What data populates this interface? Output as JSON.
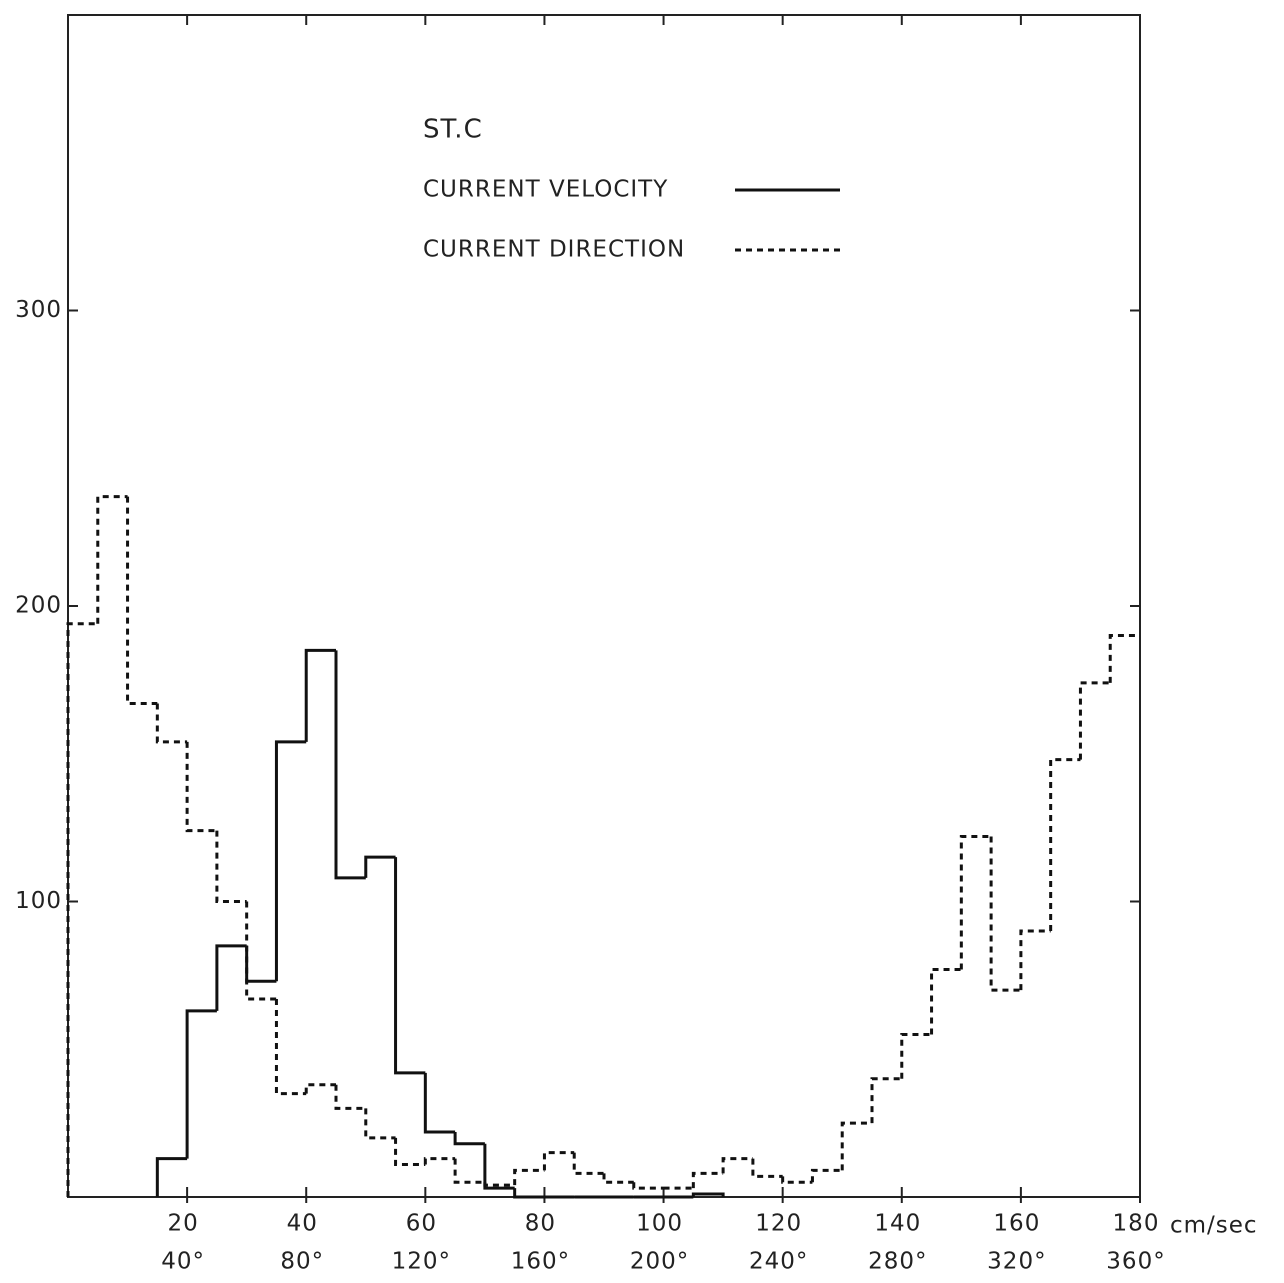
{
  "chart_data": {
    "type": "histogram",
    "title": "ST.C",
    "xlabel": "cm/sec",
    "xlim": [
      0,
      180
    ],
    "xticks": [
      20,
      40,
      60,
      80,
      100,
      120,
      140,
      160,
      180
    ],
    "x2lim": [
      0,
      360
    ],
    "x2ticks": [
      {
        "value": 40,
        "label": "40°"
      },
      {
        "value": 80,
        "label": "80°"
      },
      {
        "value": 120,
        "label": "120°"
      },
      {
        "value": 160,
        "label": "160°"
      },
      {
        "value": 200,
        "label": "200°"
      },
      {
        "value": 240,
        "label": "240°"
      },
      {
        "value": 280,
        "label": "280°"
      },
      {
        "value": 320,
        "label": "320°"
      },
      {
        "value": 360,
        "label": "360°"
      }
    ],
    "ylim": [
      0,
      400
    ],
    "yticks": [
      100,
      200,
      300
    ],
    "grid": false,
    "series": [
      {
        "name": "CURRENT VELOCITY",
        "color": "#111111",
        "line_style": "solid",
        "axis": "x",
        "bins": [
          15,
          20,
          25,
          30,
          35,
          40,
          45,
          50,
          55,
          60,
          65,
          70,
          75,
          80,
          85,
          90,
          95,
          100,
          105,
          110
        ],
        "values": [
          13,
          63,
          85,
          73,
          154,
          185,
          108,
          115,
          42,
          22,
          18,
          3,
          0,
          0,
          0,
          0,
          0,
          0,
          1
        ]
      },
      {
        "name": "CURRENT DIRECTION",
        "color": "#111111",
        "line_style": "dashed",
        "axis": "x2",
        "bins": [
          0,
          10,
          20,
          30,
          40,
          50,
          60,
          70,
          80,
          90,
          100,
          110,
          120,
          130,
          140,
          150,
          160,
          170,
          180,
          190,
          200,
          210,
          220,
          230,
          240,
          250,
          260,
          270,
          280,
          290,
          300,
          310,
          320,
          330,
          340,
          350,
          360
        ],
        "values": [
          194,
          237,
          167,
          154,
          124,
          100,
          67,
          35,
          38,
          30,
          20,
          11,
          13,
          5,
          4,
          9,
          15,
          8,
          5,
          3,
          3,
          8,
          13,
          7,
          5,
          9,
          25,
          40,
          55,
          77,
          122,
          70,
          90,
          148,
          174,
          190
        ]
      }
    ]
  }
}
